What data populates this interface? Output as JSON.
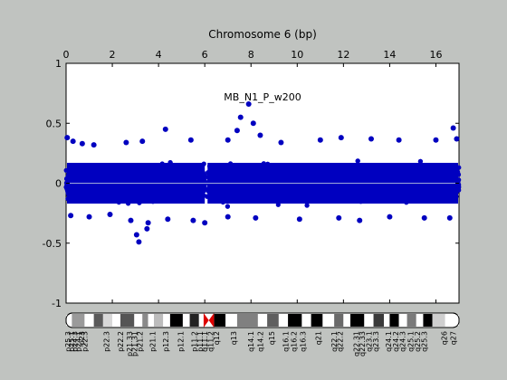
{
  "chart_data": {
    "type": "scatter",
    "title": "Chromosome 6 (bp)",
    "annotation": "MB_N1_P_w200",
    "xlim": [
      0,
      17
    ],
    "ylim": [
      -1,
      1
    ],
    "xticks": [
      "0",
      "2",
      "4",
      "6",
      "8",
      "10",
      "12",
      "14",
      "16"
    ],
    "yticks": [
      "1",
      "0.5",
      "0",
      "-0.5",
      "-1"
    ],
    "x_tick_values": [
      0,
      2,
      4,
      6,
      8,
      10,
      12,
      14,
      16
    ],
    "y_tick_values": [
      1,
      0.5,
      0,
      -0.5,
      -1
    ],
    "grid": false,
    "point_color": "#0000c0",
    "zero_line_color": "#9fa8d8",
    "band_spread": 0.22,
    "gap_region": [
      6.0,
      6.12
    ],
    "outliers": [
      {
        "x": 0.05,
        "y": 0.38
      },
      {
        "x": 0.3,
        "y": 0.35
      },
      {
        "x": 0.7,
        "y": 0.33
      },
      {
        "x": 1.2,
        "y": 0.32
      },
      {
        "x": 2.6,
        "y": 0.34
      },
      {
        "x": 3.3,
        "y": 0.35
      },
      {
        "x": 4.3,
        "y": 0.45
      },
      {
        "x": 5.4,
        "y": 0.36
      },
      {
        "x": 7.0,
        "y": 0.36
      },
      {
        "x": 7.4,
        "y": 0.44
      },
      {
        "x": 7.55,
        "y": 0.55
      },
      {
        "x": 7.9,
        "y": 0.66
      },
      {
        "x": 8.1,
        "y": 0.5
      },
      {
        "x": 8.4,
        "y": 0.4
      },
      {
        "x": 9.3,
        "y": 0.34
      },
      {
        "x": 11.0,
        "y": 0.36
      },
      {
        "x": 11.9,
        "y": 0.38
      },
      {
        "x": 13.2,
        "y": 0.37
      },
      {
        "x": 14.4,
        "y": 0.36
      },
      {
        "x": 16.0,
        "y": 0.36
      },
      {
        "x": 16.75,
        "y": 0.46
      },
      {
        "x": 16.9,
        "y": 0.37
      },
      {
        "x": 0.2,
        "y": -0.27
      },
      {
        "x": 1.0,
        "y": -0.28
      },
      {
        "x": 1.9,
        "y": -0.26
      },
      {
        "x": 2.8,
        "y": -0.31
      },
      {
        "x": 3.05,
        "y": -0.43
      },
      {
        "x": 3.15,
        "y": -0.49
      },
      {
        "x": 3.5,
        "y": -0.38
      },
      {
        "x": 3.55,
        "y": -0.33
      },
      {
        "x": 4.4,
        "y": -0.3
      },
      {
        "x": 5.5,
        "y": -0.31
      },
      {
        "x": 6.0,
        "y": -0.33
      },
      {
        "x": 7.0,
        "y": -0.28
      },
      {
        "x": 8.2,
        "y": -0.29
      },
      {
        "x": 10.1,
        "y": -0.3
      },
      {
        "x": 11.8,
        "y": -0.29
      },
      {
        "x": 12.7,
        "y": -0.31
      },
      {
        "x": 14.0,
        "y": -0.28
      },
      {
        "x": 15.5,
        "y": -0.29
      },
      {
        "x": 16.6,
        "y": -0.29
      }
    ]
  },
  "ideogram": {
    "bands": [
      {
        "x0": 0.0,
        "x1": 0.25,
        "fill": "#ffffff"
      },
      {
        "x0": 0.25,
        "x1": 0.8,
        "fill": "#9a9a9a"
      },
      {
        "x0": 0.8,
        "x1": 1.2,
        "fill": "#ffffff"
      },
      {
        "x0": 1.2,
        "x1": 1.6,
        "fill": "#5a5a5a"
      },
      {
        "x0": 1.6,
        "x1": 2.0,
        "fill": "#d8d8d8"
      },
      {
        "x0": 2.0,
        "x1": 2.35,
        "fill": "#ffffff"
      },
      {
        "x0": 2.35,
        "x1": 2.95,
        "fill": "#555555"
      },
      {
        "x0": 2.95,
        "x1": 3.3,
        "fill": "#ffffff"
      },
      {
        "x0": 3.3,
        "x1": 3.55,
        "fill": "#8a8a8a"
      },
      {
        "x0": 3.55,
        "x1": 3.8,
        "fill": "#ffffff"
      },
      {
        "x0": 3.8,
        "x1": 4.2,
        "fill": "#bcbcbc"
      },
      {
        "x0": 4.2,
        "x1": 4.5,
        "fill": "#ffffff"
      },
      {
        "x0": 4.5,
        "x1": 5.05,
        "fill": "#000000"
      },
      {
        "x0": 5.05,
        "x1": 5.35,
        "fill": "#ffffff"
      },
      {
        "x0": 5.35,
        "x1": 5.75,
        "fill": "#222222"
      },
      {
        "x0": 5.75,
        "x1": 5.95,
        "fill": "#ffffff"
      },
      {
        "x0": 6.4,
        "x1": 6.9,
        "fill": "#000000"
      },
      {
        "x0": 6.9,
        "x1": 7.4,
        "fill": "#ffffff"
      },
      {
        "x0": 7.4,
        "x1": 8.3,
        "fill": "#808080"
      },
      {
        "x0": 8.3,
        "x1": 8.7,
        "fill": "#ffffff"
      },
      {
        "x0": 8.7,
        "x1": 9.2,
        "fill": "#5f5f5f"
      },
      {
        "x0": 9.2,
        "x1": 9.6,
        "fill": "#ffffff"
      },
      {
        "x0": 9.6,
        "x1": 10.2,
        "fill": "#000000"
      },
      {
        "x0": 10.2,
        "x1": 10.6,
        "fill": "#ffffff"
      },
      {
        "x0": 10.6,
        "x1": 11.1,
        "fill": "#000000"
      },
      {
        "x0": 11.1,
        "x1": 11.6,
        "fill": "#ffffff"
      },
      {
        "x0": 11.6,
        "x1": 12.0,
        "fill": "#6a6a6a"
      },
      {
        "x0": 12.0,
        "x1": 12.3,
        "fill": "#ffffff"
      },
      {
        "x0": 12.3,
        "x1": 12.9,
        "fill": "#000000"
      },
      {
        "x0": 12.9,
        "x1": 13.3,
        "fill": "#ffffff"
      },
      {
        "x0": 13.3,
        "x1": 13.75,
        "fill": "#3a3a3a"
      },
      {
        "x0": 13.75,
        "x1": 14.0,
        "fill": "#ffffff"
      },
      {
        "x0": 14.0,
        "x1": 14.4,
        "fill": "#000000"
      },
      {
        "x0": 14.4,
        "x1": 14.75,
        "fill": "#ffffff"
      },
      {
        "x0": 14.75,
        "x1": 15.15,
        "fill": "#7a7a7a"
      },
      {
        "x0": 15.15,
        "x1": 15.45,
        "fill": "#ffffff"
      },
      {
        "x0": 15.45,
        "x1": 15.85,
        "fill": "#000000"
      },
      {
        "x0": 15.85,
        "x1": 16.4,
        "fill": "#cfcfcf"
      },
      {
        "x0": 16.4,
        "x1": 17.0,
        "fill": "#ffffff"
      }
    ],
    "centromere": {
      "x0": 5.95,
      "x1": 6.4,
      "fill": "#dd0000"
    },
    "labels": [
      {
        "x": 0.08,
        "text": "p25.3"
      },
      {
        "x": 0.23,
        "text": "p25.1"
      },
      {
        "x": 0.38,
        "text": "p24.3"
      },
      {
        "x": 0.52,
        "text": "p24.1"
      },
      {
        "x": 0.66,
        "text": "p23"
      },
      {
        "x": 0.8,
        "text": "p22.3"
      },
      {
        "x": 1.75,
        "text": "p22.3"
      },
      {
        "x": 2.35,
        "text": "p22.2"
      },
      {
        "x": 2.75,
        "text": "p21.33"
      },
      {
        "x": 2.95,
        "text": "p21.31"
      },
      {
        "x": 3.2,
        "text": "p21.2"
      },
      {
        "x": 3.75,
        "text": "p21.1"
      },
      {
        "x": 4.3,
        "text": "p12.3"
      },
      {
        "x": 4.95,
        "text": "p12.1"
      },
      {
        "x": 5.55,
        "text": "p11.2"
      },
      {
        "x": 5.8,
        "text": "p11.1"
      },
      {
        "x": 6.0,
        "text": "q11.1"
      },
      {
        "x": 6.25,
        "text": "q11.2"
      },
      {
        "x": 6.5,
        "text": "q12"
      },
      {
        "x": 7.25,
        "text": "q13"
      },
      {
        "x": 8.0,
        "text": "q14.1"
      },
      {
        "x": 8.4,
        "text": "q14.2"
      },
      {
        "x": 8.9,
        "text": "q15"
      },
      {
        "x": 9.5,
        "text": "q16.1"
      },
      {
        "x": 9.85,
        "text": "q16.2"
      },
      {
        "x": 10.25,
        "text": "q16.3"
      },
      {
        "x": 10.9,
        "text": "q21"
      },
      {
        "x": 11.6,
        "text": "q22.1"
      },
      {
        "x": 11.85,
        "text": "q22.2"
      },
      {
        "x": 12.55,
        "text": "q22.31"
      },
      {
        "x": 12.8,
        "text": "q22.33"
      },
      {
        "x": 13.1,
        "text": "q23.1"
      },
      {
        "x": 13.4,
        "text": "q23.3"
      },
      {
        "x": 13.95,
        "text": "q24.1"
      },
      {
        "x": 14.25,
        "text": "q24.2"
      },
      {
        "x": 14.55,
        "text": "q24.3"
      },
      {
        "x": 14.9,
        "text": "q25.1"
      },
      {
        "x": 15.2,
        "text": "q25.2"
      },
      {
        "x": 15.5,
        "text": "q25.3"
      },
      {
        "x": 16.35,
        "text": "q26"
      },
      {
        "x": 16.75,
        "text": "q27"
      }
    ]
  }
}
